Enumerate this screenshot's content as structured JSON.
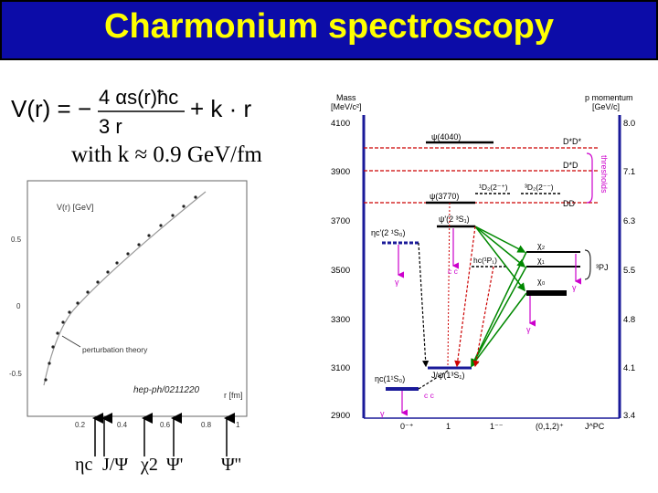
{
  "title": "Charmonium spectroscopy",
  "potential": {
    "formula_parts": {
      "lhs": "V(r) = −",
      "num": "4 αs(r)ħc",
      "den": "3   r",
      "rhs": "+ k · r"
    },
    "note": "with k ≈ 0.9 GeV/fm"
  },
  "potential_plot": {
    "y_axis_label": "V(r) [GeV]",
    "x_axis_label": "r [fm]",
    "y_ticks": [
      "0.5",
      "0",
      "-0.5"
    ],
    "x_ticks": [
      "0.2",
      "0.4",
      "0.6",
      "0.8",
      "1"
    ],
    "annotation": "perturbation theory",
    "reference": "hep-ph/0211220"
  },
  "bottom_labels": {
    "etac": "ηc",
    "jpsi": "J/Ψ",
    "chi2": "χ2",
    "psiprime": "Ψ'",
    "psidoubleprime": "Ψ''"
  },
  "level_diagram": {
    "left_axis_title": [
      "Mass",
      "[MeV/c²]"
    ],
    "left_ticks": [
      "4100",
      "3900",
      "3700",
      "3500",
      "3300",
      "3100",
      "2900"
    ],
    "right_axis_title": [
      "p momentum",
      "[GeV/c]"
    ],
    "right_ticks": [
      "8.0",
      "7.1",
      "6.3",
      "5.5",
      "4.8",
      "4.1",
      "3.4"
    ],
    "thresholds_label": "thresholds",
    "threshold_labels": [
      "D*D*",
      "D*D",
      "DD"
    ],
    "states": {
      "psi4040": "ψ(4040)",
      "psi3770": "ψ(3770)",
      "d2": "¹D₂(2⁻⁺)",
      "d3": "³D₂(2⁻⁻)",
      "psi2s": "ψ'(2 ³S₁)",
      "etac2s": "ηc'(2 ¹S₀)",
      "hc": "hc(¹P₁)",
      "chi2": "χ₂",
      "chi1": "χ₁",
      "chi0": "χ₀",
      "pj": "³PJ",
      "etac1s": "ηc(1¹S₀)",
      "jpsi1s": "J/ψ(1³S₁)"
    },
    "gamma": "γ",
    "ccbar": "c c",
    "bottom_quantum": [
      "0⁻⁺",
      "1",
      "1⁻⁻",
      "(0,1,2)⁺",
      "J^PC"
    ]
  }
}
